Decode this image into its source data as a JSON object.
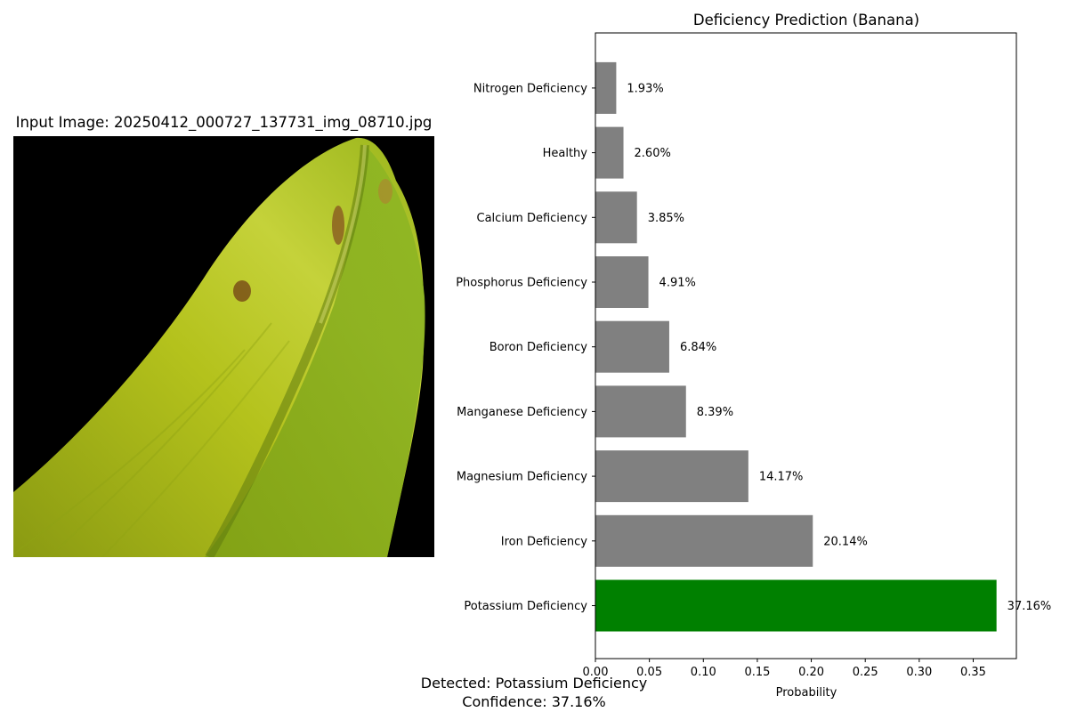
{
  "image_panel": {
    "title": "Input Image: 20250412_000727_137731_img_08710.jpg",
    "depicts": "banana-leaf"
  },
  "result": {
    "detected_text": "Detected: Potassium Deficiency",
    "confidence_text": "Confidence: 37.16%"
  },
  "colors": {
    "default_bar": "#808080",
    "highlight_bar": "#008000"
  },
  "chart_data": {
    "type": "bar",
    "orientation": "horizontal",
    "title": "Deficiency Prediction (Banana)",
    "xlabel": "Probability",
    "ylabel": "",
    "xlim": [
      0,
      0.39
    ],
    "xticks": [
      0.0,
      0.05,
      0.1,
      0.15,
      0.2,
      0.25,
      0.3,
      0.35
    ],
    "xtick_labels": [
      "0.00",
      "0.05",
      "0.10",
      "0.15",
      "0.20",
      "0.25",
      "0.30",
      "0.35"
    ],
    "grid": false,
    "categories": [
      "Potassium Deficiency",
      "Iron Deficiency",
      "Magnesium Deficiency",
      "Manganese Deficiency",
      "Boron Deficiency",
      "Phosphorus Deficiency",
      "Calcium Deficiency",
      "Healthy",
      "Nitrogen Deficiency"
    ],
    "values": [
      0.3716,
      0.2014,
      0.1417,
      0.0839,
      0.0684,
      0.0491,
      0.0385,
      0.026,
      0.0193
    ],
    "value_labels": [
      "37.16%",
      "20.14%",
      "14.17%",
      "8.39%",
      "6.84%",
      "4.91%",
      "3.85%",
      "2.60%",
      "1.93%"
    ],
    "highlight_category": "Potassium Deficiency"
  }
}
